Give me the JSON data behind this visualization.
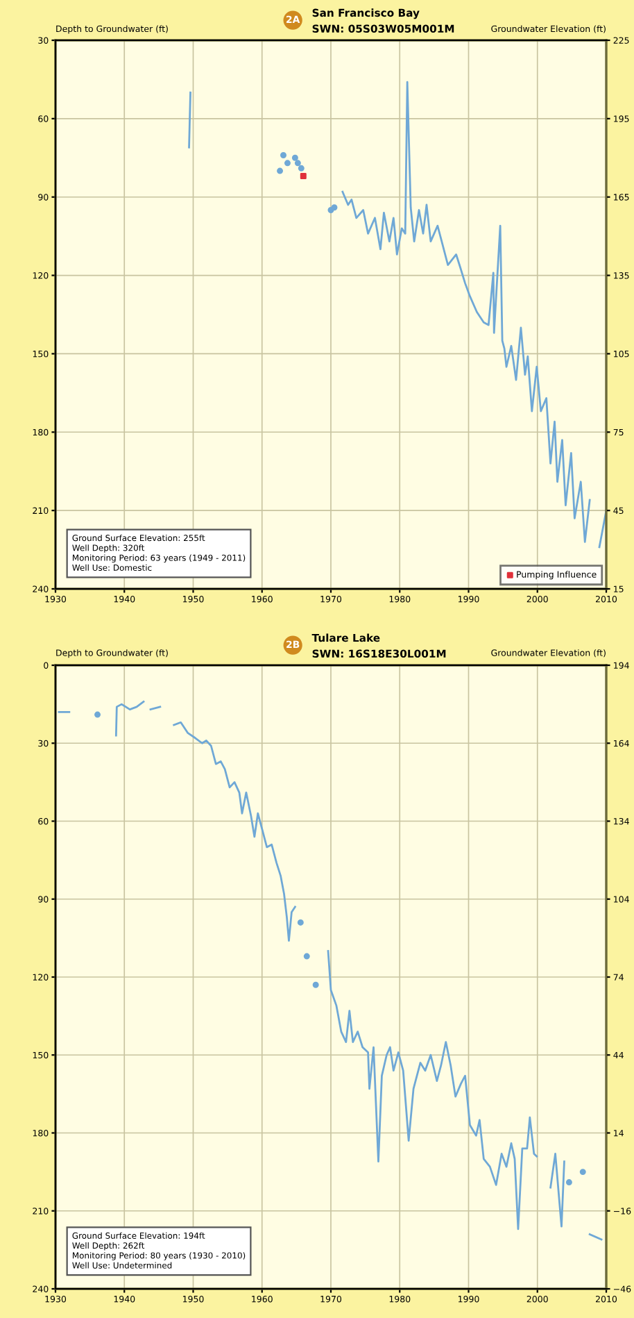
{
  "chart_data": [
    {
      "type": "line",
      "title": "San Francisco Bay",
      "subtitle": "SWN: 05S03W05M001M",
      "ylabel": "Depth to Groundwater (ft)",
      "y2label": "Groundwater Elevation (ft)",
      "xlim": [
        1930,
        2010
      ],
      "xticks": [
        1930,
        1940,
        1950,
        1960,
        1970,
        1980,
        1990,
        2000,
        2010
      ],
      "ylim": [
        240,
        30
      ],
      "yticks": [
        30,
        60,
        90,
        120,
        150,
        180,
        210,
        240
      ],
      "y2lim": [
        15,
        225
      ],
      "y2ticks": [
        225,
        195,
        165,
        135,
        105,
        75,
        45,
        15
      ],
      "grid": true,
      "legend": "bottom right",
      "annotations": [
        "2A",
        "Ground Surface Elevation: 255ft\nWell Depth: 320ft\nMonitoring Period: 63 years (1949 - 2011)\nWell Use: Domestic"
      ],
      "series": [
        {
          "color": "#6fa8d6",
          "x": [
            1949.4,
            1949.6,
            null,
            1971.7,
            1972.5,
            1973.0,
            1973.7,
            1974.7,
            1975.4,
            1976.4,
            1977.2,
            1977.7,
            1978.5,
            1979.1,
            1979.6,
            1980.3,
            1980.8,
            1981.1,
            1981.6,
            1982.1,
            1982.8,
            1983.4,
            1983.9,
            1984.5,
            1985.5,
            1986.1,
            1987.0,
            1988.2,
            1988.8,
            1989.5,
            1990.2,
            1991.2,
            1992.2,
            1992.9,
            1993.6,
            1993.7,
            1994.6,
            1994.9,
            1995.2,
            1995.5,
            1996.2,
            1996.9,
            1997.6,
            1998.2,
            1998.6,
            1999.2,
            1999.9,
            2000.5,
            2001.3,
            2001.9,
            2002.5,
            2002.9,
            2003.6,
            2004.1,
            2004.9,
            2005.4,
            2006.3,
            2006.9,
            2007.6,
            null,
            2009.0,
            2010.0
          ],
          "values": [
            71,
            50,
            null,
            88,
            93,
            91,
            98,
            95,
            104,
            98,
            110,
            96,
            107,
            98,
            112,
            102,
            104,
            46,
            94,
            107,
            95,
            104,
            93,
            107,
            101,
            107,
            116,
            112,
            117,
            123,
            128,
            134,
            138,
            139,
            119,
            142,
            101,
            145,
            148,
            155,
            147,
            160,
            140,
            158,
            151,
            172,
            155,
            172,
            167,
            192,
            176,
            199,
            183,
            208,
            188,
            213,
            199,
            222,
            206,
            null,
            224,
            210
          ]
        },
        {
          "type": "scatter",
          "color": "#6fa8d6",
          "marker": "circle",
          "x": [
            1962.6,
            1963.1,
            1963.7,
            1964.8,
            1965.2,
            1965.7,
            1970.0,
            1970.5
          ],
          "values": [
            80,
            74,
            77,
            75,
            77,
            79,
            95,
            94
          ]
        },
        {
          "type": "scatter",
          "name": "Pumping Influence",
          "color": "#e0303a",
          "marker": "square",
          "x": [
            1966.0
          ],
          "values": [
            82
          ]
        }
      ]
    },
    {
      "type": "line",
      "title": "Tulare Lake",
      "subtitle": "SWN: 16S18E30L001M",
      "ylabel": "Depth to Groundwater (ft)",
      "y2label": "Groundwater Elevation (ft)",
      "xlim": [
        1930,
        2010
      ],
      "xticks": [
        1930,
        1940,
        1950,
        1960,
        1970,
        1980,
        1990,
        2000,
        2010
      ],
      "ylim": [
        240,
        0
      ],
      "yticks": [
        0,
        30,
        60,
        90,
        120,
        150,
        180,
        210,
        240
      ],
      "y2lim": [
        -46,
        194
      ],
      "y2ticks": [
        194,
        164,
        134,
        104,
        74,
        44,
        14,
        {
          "value": -16,
          "label": "−16"
        },
        {
          "value": -46,
          "label": "−46"
        }
      ],
      "grid": true,
      "annotations": [
        "2B",
        "Ground Surface Elevation: 194ft\nWell Depth: 262ft\nMonitoring Period: 80 years (1930 - 2010)\nWell Use: Undetermined"
      ],
      "series": [
        {
          "color": "#6fa8d6",
          "x": [
            1930.5,
            1932.0,
            null,
            1938.8,
            1938.9,
            1939.6,
            1940.8,
            1941.8,
            1942.8,
            null,
            1943.8,
            1945.2,
            null,
            1947.2,
            1948.2,
            1949.2,
            1950.3,
            1951.3,
            1951.9,
            1952.6,
            1953.3,
            1954.0,
            1954.6,
            1955.3,
            1956.0,
            1956.7,
            1957.1,
            1957.7,
            1958.4,
            1958.9,
            1959.4,
            1960.0,
            1960.7,
            1961.4,
            1962.1,
            1962.7,
            1963.2,
            1963.6,
            1963.9,
            1964.3,
            1964.8,
            null,
            1969.6,
            1970.0,
            1970.8,
            1971.5,
            1972.2,
            1972.7,
            1973.2,
            1973.9,
            1974.6,
            1975.4,
            1975.6,
            1976.2,
            1976.9,
            1977.4,
            1978.1,
            1978.6,
            1979.1,
            1979.8,
            1980.5,
            1981.3,
            1982.0,
            1983.0,
            1983.7,
            1984.5,
            1985.4,
            1986.0,
            1986.7,
            1987.4,
            1988.1,
            1988.9,
            1989.5,
            1990.2,
            1991.1,
            1991.6,
            1992.2,
            1993.1,
            1994.0,
            1994.8,
            1995.5,
            1996.2,
            1996.7,
            1997.2,
            1997.8,
            1998.5,
            1998.9,
            1999.5,
            1999.9,
            null,
            2001.9,
            2002.6,
            2003.5,
            2003.9,
            null,
            2007.6,
            2009.3
          ],
          "values": [
            18,
            18,
            null,
            27,
            16,
            15,
            17,
            16,
            14,
            null,
            17,
            16,
            null,
            23,
            22,
            26,
            28,
            30,
            29,
            31,
            38,
            37,
            40,
            47,
            45,
            49,
            57,
            49,
            58,
            66,
            57,
            63,
            70,
            69,
            76,
            81,
            88,
            97,
            106,
            95,
            93,
            null,
            110,
            125,
            131,
            141,
            145,
            133,
            145,
            141,
            147,
            149,
            163,
            147,
            191,
            158,
            150,
            147,
            156,
            149,
            156,
            183,
            163,
            153,
            156,
            150,
            160,
            154,
            145,
            154,
            166,
            161,
            158,
            177,
            181,
            175,
            190,
            193,
            200,
            188,
            193,
            184,
            190,
            217,
            186,
            186,
            174,
            188,
            189,
            null,
            201,
            188,
            216,
            191,
            null,
            219,
            221
          ]
        },
        {
          "type": "scatter",
          "color": "#6fa8d6",
          "marker": "circle",
          "x": [
            1936.1,
            1965.6,
            1966.5,
            1967.8,
            2004.6,
            2006.6
          ],
          "values": [
            19,
            99,
            112,
            123,
            199,
            195
          ]
        }
      ]
    }
  ]
}
